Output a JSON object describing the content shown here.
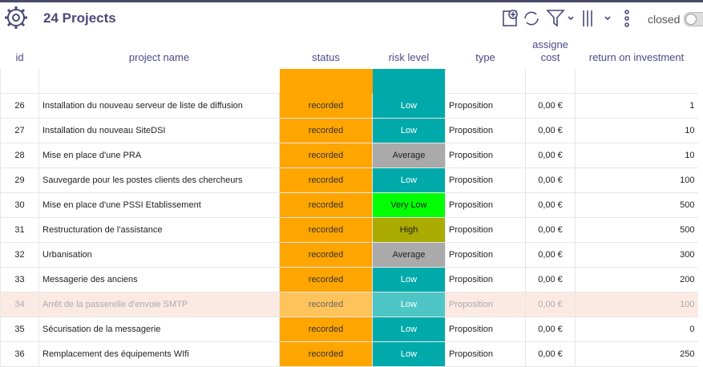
{
  "header": {
    "title": "24 Projects",
    "toggle_label": "closed"
  },
  "table": {
    "columns": [
      "id",
      "project name",
      "status",
      "risk level",
      "type",
      "assigne cost",
      "return on investment"
    ],
    "rows": [
      [
        26,
        "Installation du nouveau serveur de liste de diffusion",
        "recorded",
        "Low",
        "Proposition",
        "0,00 €",
        1
      ],
      [
        27,
        "Installation du nouveau SiteDSI",
        "recorded",
        "Low",
        "Proposition",
        "0,00 €",
        10
      ],
      [
        28,
        "Mise en place d'une PRA",
        "recorded",
        "Average",
        "Proposition",
        "0,00 €",
        10
      ],
      [
        29,
        "Sauvegarde pour les postes clients des chercheurs",
        "recorded",
        "Low",
        "Proposition",
        "0,00 €",
        100
      ],
      [
        30,
        "Mise en place d'une PSSI Etablissement",
        "recorded",
        "Very Low",
        "Proposition",
        "0,00 €",
        500
      ],
      [
        31,
        "Restructuration de l'assistance",
        "recorded",
        "High",
        "Proposition",
        "0,00 €",
        500
      ],
      [
        32,
        "Urbanisation",
        "recorded",
        "Average",
        "Proposition",
        "0,00 €",
        300
      ],
      [
        33,
        "Messagerie des anciens",
        "recorded",
        "Low",
        "Proposition",
        "0,00 €",
        200
      ],
      [
        34,
        "Arrêt de la passerelle d'envoie SMTP",
        "recorded",
        "Low",
        "Proposition",
        "0,00 €",
        100
      ],
      [
        35,
        "Sécurisation de la messagerie",
        "recorded",
        "Low",
        "Proposition",
        "0,00 €",
        0
      ],
      [
        36,
        "Remplacement des équipements WIfi",
        "recorded",
        "Low",
        "Proposition",
        "0,00 €",
        250
      ]
    ],
    "highlighted_row": 8
  }
}
